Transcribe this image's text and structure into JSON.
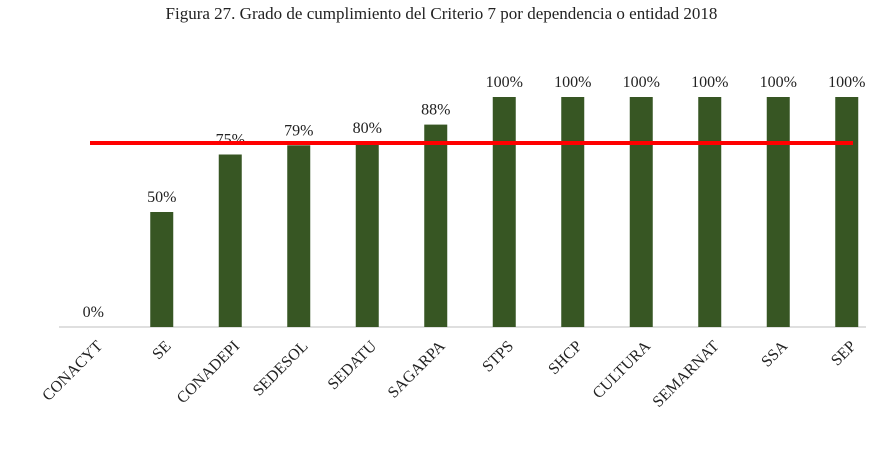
{
  "chart_data": {
    "type": "bar",
    "title": "Figura 27. Grado de cumplimiento del Criterio 7 por dependencia o entidad 2018",
    "categories": [
      "CONACYT",
      "SE",
      "CONADEPI",
      "SEDESOL",
      "SEDATU",
      "SAGARPA",
      "STPS",
      "SHCP",
      "CULTURA",
      "SEMARNAT",
      "SSA",
      "SEP"
    ],
    "values": [
      0,
      50,
      75,
      79,
      80,
      88,
      100,
      100,
      100,
      100,
      100,
      100
    ],
    "value_labels": [
      "0%",
      "50%",
      "75%",
      "79%",
      "80%",
      "88%",
      "100%",
      "100%",
      "100%",
      "100%",
      "100%",
      "100%"
    ],
    "color": "#375623",
    "ylim": [
      0,
      100
    ],
    "reference_line": {
      "value": 80,
      "color": "#ff0000"
    }
  }
}
